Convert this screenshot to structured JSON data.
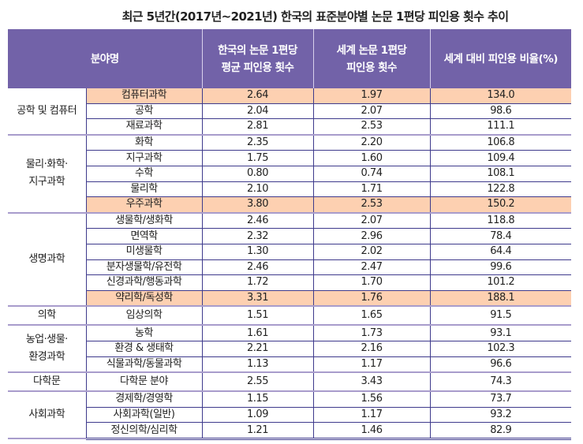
{
  "title": "최근 5년간(2017년~2021년) 한국의 표준분야별 논문 1편당 피인용 횟수 추이",
  "headers": [
    "분야명",
    "한국의 논문 1편당\n평균 피인용 횟수",
    "세계 논문 1편당\n피인용 횟수",
    "세계 대비 피인용 비율(%)"
  ],
  "highlight_color": "#fdd0b1",
  "header_color": "#7262a8",
  "groups": [
    {
      "name": "공학 및 컴퓨터",
      "rows": [
        {
          "field": "컴퓨터과학",
          "korea": "2.64",
          "world": "1.97",
          "ratio": "134.0",
          "highlight": true
        },
        {
          "field": "공학",
          "korea": "2.04",
          "world": "2.07",
          "ratio": "98.6"
        },
        {
          "field": "재료과학",
          "korea": "2.81",
          "world": "2.53",
          "ratio": "111.1"
        }
      ]
    },
    {
      "name": "물리·화학·\n지구과학",
      "rows": [
        {
          "field": "화학",
          "korea": "2.35",
          "world": "2.20",
          "ratio": "106.8"
        },
        {
          "field": "지구과학",
          "korea": "1.75",
          "world": "1.60",
          "ratio": "109.4"
        },
        {
          "field": "수학",
          "korea": "0.80",
          "world": "0.74",
          "ratio": "108.1"
        },
        {
          "field": "물리학",
          "korea": "2.10",
          "world": "1.71",
          "ratio": "122.8"
        },
        {
          "field": "우주과학",
          "korea": "3.80",
          "world": "2.53",
          "ratio": "150.2",
          "highlight": true
        }
      ]
    },
    {
      "name": "생명과학",
      "rows": [
        {
          "field": "생물학/생화학",
          "korea": "2.46",
          "world": "2.07",
          "ratio": "118.8"
        },
        {
          "field": "면역학",
          "korea": "2.32",
          "world": "2.96",
          "ratio": "78.4"
        },
        {
          "field": "미생물학",
          "korea": "1.30",
          "world": "2.02",
          "ratio": "64.4"
        },
        {
          "field": "분자생물학/유전학",
          "korea": "2.46",
          "world": "2.47",
          "ratio": "99.6"
        },
        {
          "field": "신경과학/행동과학",
          "korea": "1.72",
          "world": "1.70",
          "ratio": "101.2"
        },
        {
          "field": "약리학/독성학",
          "korea": "3.31",
          "world": "1.76",
          "ratio": "188.1",
          "highlight": true
        }
      ]
    },
    {
      "name": "의학",
      "rows": [
        {
          "field": "임상의학",
          "korea": "1.51",
          "world": "1.65",
          "ratio": "91.5"
        }
      ]
    },
    {
      "name": "농업·생물·\n환경과학",
      "rows": [
        {
          "field": "농학",
          "korea": "1.61",
          "world": "1.73",
          "ratio": "93.1"
        },
        {
          "field": "환경 & 생태학",
          "korea": "2.21",
          "world": "2.16",
          "ratio": "102.3"
        },
        {
          "field": "식물과학/동물과학",
          "korea": "1.13",
          "world": "1.17",
          "ratio": "96.6"
        }
      ]
    },
    {
      "name": "다학문",
      "rows": [
        {
          "field": "다학문 분야",
          "korea": "2.55",
          "world": "3.43",
          "ratio": "74.3"
        }
      ]
    },
    {
      "name": "사회과학",
      "rows": [
        {
          "field": "경제학/경영학",
          "korea": "1.15",
          "world": "1.56",
          "ratio": "73.7"
        },
        {
          "field": "사회과학(일반)",
          "korea": "1.09",
          "world": "1.17",
          "ratio": "93.2"
        },
        {
          "field": "정신의학/심리학",
          "korea": "1.21",
          "world": "1.46",
          "ratio": "82.9"
        }
      ]
    }
  ]
}
